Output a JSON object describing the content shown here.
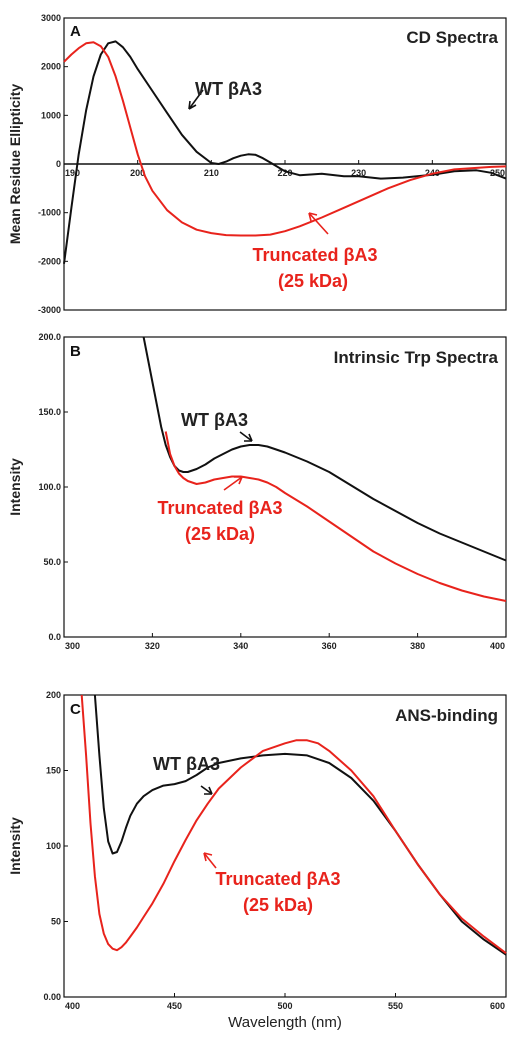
{
  "chart_data": [
    {
      "panel": "A",
      "title": "CD Spectra",
      "type": "line",
      "xlabel": "",
      "ylabel": "Mean Residue Ellipticity",
      "xlim": [
        190,
        250
      ],
      "ylim": [
        -3000,
        3000
      ],
      "xticks": [
        "190",
        "200",
        "210",
        "220",
        "230",
        "240",
        "250"
      ],
      "yticks": [
        "-3000",
        "-2000",
        "-1000",
        "0",
        "1000",
        "2000",
        "3000"
      ],
      "series": [
        {
          "name": "WT βA3",
          "color": "#111111",
          "x": [
            190,
            191,
            192,
            193,
            194,
            195,
            196,
            197,
            198,
            199,
            200,
            202,
            204,
            206,
            208,
            210,
            211,
            212,
            213,
            214,
            215,
            216,
            217,
            218,
            220,
            222,
            225,
            228,
            230,
            233,
            236,
            240,
            243,
            246,
            248,
            250
          ],
          "y": [
            -2050,
            -900,
            200,
            1100,
            1800,
            2250,
            2480,
            2520,
            2400,
            2200,
            1950,
            1500,
            1050,
            600,
            250,
            20,
            0,
            50,
            120,
            170,
            200,
            190,
            120,
            30,
            -150,
            -230,
            -200,
            -250,
            -250,
            -300,
            -280,
            -220,
            -150,
            -130,
            -180,
            -300
          ]
        },
        {
          "name": "Truncated βA3 (25 kDa)",
          "color": "#e8231c",
          "x": [
            190,
            191,
            192,
            193,
            194,
            195,
            196,
            197,
            198,
            199,
            200,
            201,
            202,
            204,
            206,
            208,
            210,
            212,
            214,
            216,
            218,
            220,
            222,
            225,
            228,
            231,
            234,
            237,
            240,
            243,
            246,
            248,
            250
          ],
          "y": [
            2100,
            2250,
            2380,
            2480,
            2500,
            2420,
            2200,
            1800,
            1300,
            750,
            200,
            -250,
            -550,
            -950,
            -1200,
            -1350,
            -1420,
            -1460,
            -1470,
            -1470,
            -1450,
            -1380,
            -1280,
            -1100,
            -900,
            -700,
            -500,
            -330,
            -200,
            -110,
            -80,
            -60,
            -50
          ]
        }
      ],
      "annotations": [
        {
          "text": "WT βA3",
          "target_series": 0
        },
        {
          "text": "Truncated βA3",
          "text2": "(25 kDa)",
          "target_series": 1
        }
      ]
    },
    {
      "panel": "B",
      "title": "Intrinsic Trp Spectra",
      "type": "line",
      "xlabel": "",
      "ylabel": "Intensity",
      "xlim": [
        300,
        400
      ],
      "ylim": [
        0,
        200
      ],
      "xticks": [
        "300",
        "320",
        "340",
        "360",
        "380",
        "400"
      ],
      "yticks": [
        "0.0",
        "50.0",
        "100.0",
        "150.0",
        "200.0"
      ],
      "series": [
        {
          "name": "WT βA3",
          "color": "#111111",
          "x": [
            318,
            319,
            320,
            321,
            322,
            323,
            324,
            325,
            326,
            327,
            328,
            330,
            332,
            334,
            336,
            338,
            340,
            342,
            344,
            346,
            348,
            350,
            355,
            360,
            365,
            370,
            375,
            380,
            385,
            390,
            395,
            400
          ],
          "y": [
            200,
            185,
            170,
            155,
            140,
            128,
            120,
            114,
            111,
            110,
            110,
            112,
            115,
            119,
            122,
            125,
            127,
            128,
            128,
            127,
            125,
            123,
            117,
            110,
            101,
            92,
            84,
            76,
            69,
            63,
            57,
            51
          ]
        },
        {
          "name": "Truncated βA3 (25 kDa)",
          "color": "#e8231c",
          "x": [
            323,
            324,
            325,
            326,
            327,
            328,
            330,
            332,
            334,
            336,
            338,
            340,
            342,
            344,
            346,
            348,
            350,
            355,
            360,
            365,
            370,
            375,
            380,
            385,
            390,
            395,
            400
          ],
          "y": [
            137,
            122,
            114,
            109,
            106,
            104,
            102,
            103,
            105,
            106,
            107,
            107,
            106,
            105,
            103,
            100,
            96,
            87,
            77,
            67,
            57,
            49,
            42,
            36,
            31,
            27,
            24
          ]
        }
      ],
      "annotations": [
        {
          "text": "WT βA3",
          "target_series": 0
        },
        {
          "text": "Truncated βA3",
          "text2": "(25 kDa)",
          "target_series": 1
        }
      ]
    },
    {
      "panel": "C",
      "title": "ANS-binding",
      "type": "line",
      "xlabel": "Wavelength (nm)",
      "ylabel": "Intensity",
      "xlim": [
        400,
        600
      ],
      "ylim": [
        0,
        200
      ],
      "xticks": [
        "400",
        "450",
        "500",
        "550",
        "600"
      ],
      "yticks": [
        "0.00",
        "50",
        "100",
        "150",
        "200"
      ],
      "series": [
        {
          "name": "WT βA3",
          "color": "#111111",
          "x": [
            414,
            416,
            418,
            420,
            422,
            424,
            426,
            428,
            430,
            433,
            436,
            440,
            445,
            450,
            455,
            460,
            465,
            470,
            480,
            490,
            500,
            510,
            520,
            530,
            540,
            550,
            560,
            570,
            580,
            590,
            600
          ],
          "y": [
            200,
            160,
            125,
            103,
            95,
            96,
            103,
            112,
            120,
            128,
            133,
            137,
            140,
            141,
            143,
            147,
            152,
            155,
            158,
            160,
            161,
            160,
            155,
            145,
            130,
            110,
            88,
            68,
            50,
            38,
            28
          ]
        },
        {
          "name": "Truncated βA3 (25 kDa)",
          "color": "#e8231c",
          "x": [
            408,
            410,
            412,
            414,
            416,
            418,
            420,
            422,
            424,
            426,
            428,
            430,
            433,
            436,
            440,
            445,
            450,
            455,
            460,
            465,
            470,
            480,
            490,
            500,
            505,
            510,
            515,
            520,
            530,
            540,
            550,
            560,
            570,
            580,
            590,
            600
          ],
          "y": [
            200,
            160,
            115,
            80,
            55,
            42,
            35,
            32,
            31,
            33,
            36,
            40,
            46,
            53,
            62,
            75,
            90,
            104,
            117,
            128,
            138,
            152,
            163,
            168,
            170,
            170,
            168,
            163,
            150,
            133,
            110,
            88,
            68,
            52,
            40,
            29
          ]
        }
      ],
      "annotations": [
        {
          "text": "WT βA3",
          "target_series": 0
        },
        {
          "text": "Truncated βA3",
          "text2": "(25 kDa)",
          "target_series": 1
        }
      ]
    }
  ]
}
